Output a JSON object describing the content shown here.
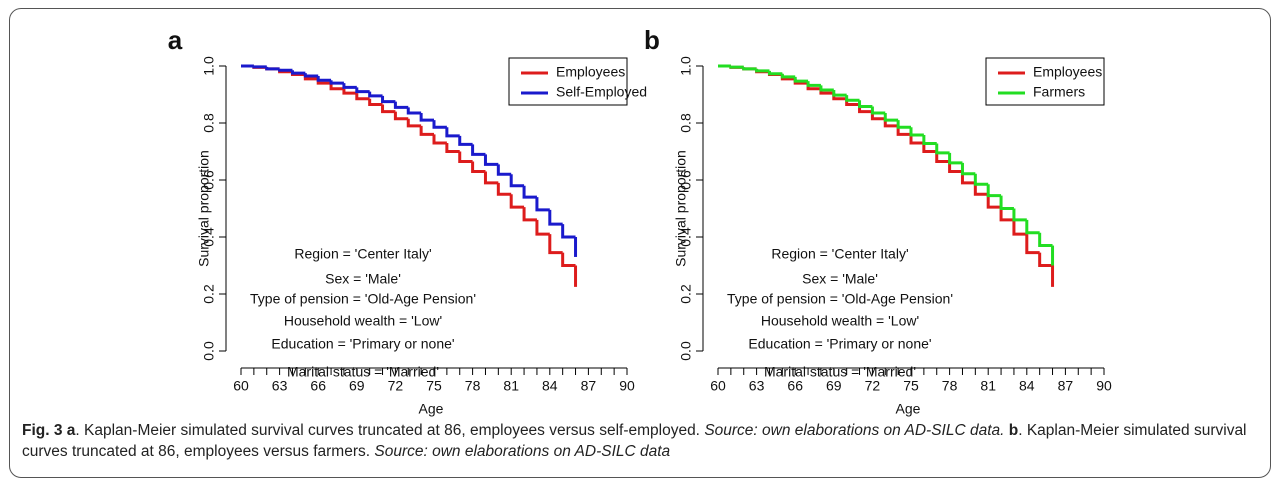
{
  "chart_data": [
    {
      "type": "step",
      "panel": "a",
      "x_label": "Age",
      "y_label": "Survival proportion",
      "x": [
        60,
        61,
        62,
        63,
        64,
        65,
        66,
        67,
        68,
        69,
        70,
        71,
        72,
        73,
        74,
        75,
        76,
        77,
        78,
        79,
        80,
        81,
        82,
        83,
        84,
        85,
        86
      ],
      "series": [
        {
          "name": "Employees",
          "color": "#dd1c1c",
          "values": [
            1.0,
            0.995,
            0.99,
            0.98,
            0.97,
            0.955,
            0.94,
            0.92,
            0.905,
            0.885,
            0.865,
            0.84,
            0.815,
            0.79,
            0.76,
            0.73,
            0.7,
            0.665,
            0.63,
            0.59,
            0.55,
            0.505,
            0.46,
            0.41,
            0.345,
            0.3,
            0.225
          ]
        },
        {
          "name": "Self-Employed",
          "color": "#1a1acc",
          "values": [
            1.0,
            0.997,
            0.99,
            0.985,
            0.975,
            0.965,
            0.95,
            0.94,
            0.925,
            0.91,
            0.895,
            0.875,
            0.855,
            0.835,
            0.81,
            0.785,
            0.755,
            0.725,
            0.69,
            0.655,
            0.62,
            0.58,
            0.54,
            0.495,
            0.445,
            0.4,
            0.33
          ]
        }
      ],
      "xlim": [
        60,
        90
      ],
      "xticks": [
        60,
        63,
        66,
        69,
        72,
        75,
        78,
        81,
        84,
        87,
        90
      ],
      "xminor_ticks": [
        61,
        62,
        64,
        65,
        67,
        68,
        70,
        71,
        73,
        74,
        76,
        77,
        79,
        80,
        82,
        83,
        85,
        86,
        88,
        89
      ],
      "ylim": [
        0,
        1
      ],
      "yticks": [
        {
          "value": 0,
          "label": "0.0"
        },
        0.2,
        0.4,
        0.6,
        0.8,
        {
          "value": 1,
          "label": "1.0"
        }
      ],
      "legend": "top right",
      "annotations": [
        "Region = 'Center Italy'",
        "Sex = 'Male'",
        "Type of pension = 'Old-Age Pension'",
        "Household wealth = 'Low'",
        "Education = 'Primary or none'",
        "Marital status = 'Married'"
      ]
    },
    {
      "type": "step",
      "panel": "b",
      "x_label": "Age",
      "y_label": "Survival proportion",
      "x": [
        60,
        61,
        62,
        63,
        64,
        65,
        66,
        67,
        68,
        69,
        70,
        71,
        72,
        73,
        74,
        75,
        76,
        77,
        78,
        79,
        80,
        81,
        82,
        83,
        84,
        85,
        86
      ],
      "series": [
        {
          "name": "Employees",
          "color": "#dd1c1c",
          "values": [
            1.0,
            0.995,
            0.99,
            0.98,
            0.97,
            0.955,
            0.94,
            0.92,
            0.905,
            0.885,
            0.865,
            0.84,
            0.815,
            0.79,
            0.76,
            0.73,
            0.7,
            0.665,
            0.63,
            0.59,
            0.55,
            0.505,
            0.46,
            0.41,
            0.345,
            0.3,
            0.225
          ]
        },
        {
          "name": "Farmers",
          "color": "#22dd22",
          "values": [
            1.0,
            0.996,
            0.99,
            0.983,
            0.973,
            0.962,
            0.947,
            0.932,
            0.916,
            0.898,
            0.88,
            0.858,
            0.835,
            0.81,
            0.785,
            0.758,
            0.728,
            0.695,
            0.66,
            0.622,
            0.585,
            0.545,
            0.5,
            0.46,
            0.415,
            0.37,
            0.3
          ]
        }
      ],
      "xlim": [
        60,
        90
      ],
      "xticks": [
        60,
        63,
        66,
        69,
        72,
        75,
        78,
        81,
        84,
        87,
        90
      ],
      "xminor_ticks": [
        61,
        62,
        64,
        65,
        67,
        68,
        70,
        71,
        73,
        74,
        76,
        77,
        79,
        80,
        82,
        83,
        85,
        86,
        88,
        89
      ],
      "ylim": [
        0,
        1
      ],
      "yticks": [
        {
          "value": 0,
          "label": "0.0"
        },
        0.2,
        0.4,
        0.6,
        0.8,
        {
          "value": 1,
          "label": "1.0"
        }
      ],
      "legend": "top right",
      "annotations": [
        "Region = 'Center Italy'",
        "Sex = 'Male'",
        "Type of pension = 'Old-Age Pension'",
        "Household wealth = 'Low'",
        "Education = 'Primary or none'",
        "Marital status = 'Married'"
      ]
    }
  ],
  "caption": {
    "label_a": "Fig. 3 a",
    "text_a": ". Kaplan-Meier simulated survival curves truncated at 86, employees versus self-employed. ",
    "source_a": "Source: own elaborations on AD-SILC data.",
    "label_b": "b",
    "text_b": ". Kaplan-Meier simulated survival curves truncated at 86, employees versus farmers. ",
    "source_b": "Source: own elaborations on AD-SILC data"
  }
}
